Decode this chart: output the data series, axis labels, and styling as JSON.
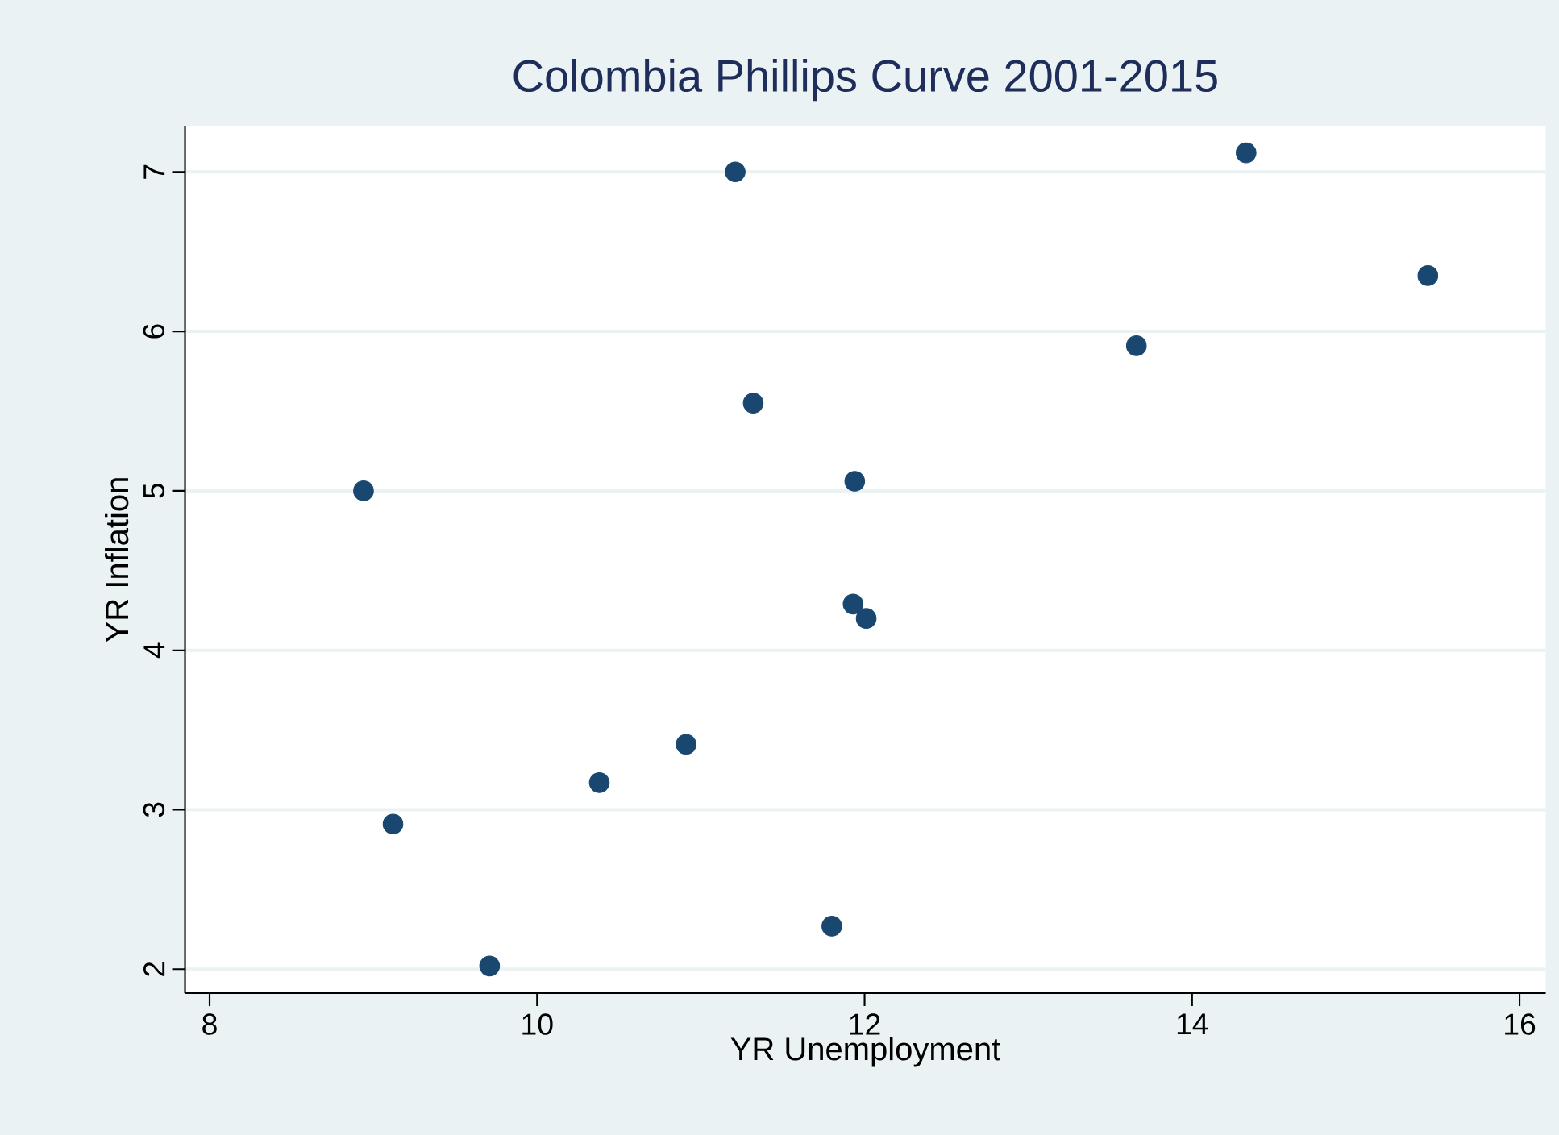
{
  "chart_data": {
    "type": "scatter",
    "title": "Colombia Phillips Curve 2001-2015",
    "xlabel": "YR Unemployment",
    "ylabel": "YR Inflation",
    "x": [
      11.21,
      11.32,
      8.94,
      11.94,
      14.33,
      15.44,
      13.66,
      11.93,
      12.01,
      10.91,
      10.38,
      9.12,
      9.71,
      11.8
    ],
    "series": [
      {
        "color": "#1a476f",
        "values": [
          7.0,
          5.55,
          5.0,
          5.06,
          7.12,
          6.35,
          5.91,
          4.29,
          4.2,
          3.41,
          3.17,
          2.91,
          2.02,
          2.27
        ]
      }
    ],
    "xlim": [
      7.85,
      16.16
    ],
    "ylim": [
      1.85,
      7.29
    ],
    "xticks": [
      8,
      10,
      12,
      14,
      16
    ],
    "yticks": [
      2,
      3,
      4,
      5,
      6,
      7
    ],
    "grid": "y",
    "marker": "circle"
  }
}
